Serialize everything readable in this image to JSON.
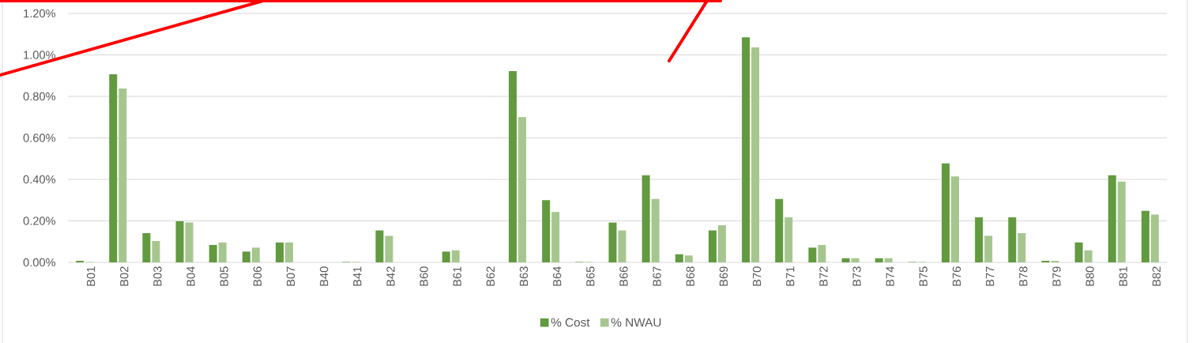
{
  "chart_data": {
    "type": "bar",
    "categories": [
      "B01",
      "B02",
      "B03",
      "B04",
      "B05",
      "B06",
      "B07",
      "B40",
      "B41",
      "B42",
      "B60",
      "B61",
      "B62",
      "B63",
      "B64",
      "B65",
      "B66",
      "B67",
      "B68",
      "B69",
      "B70",
      "B71",
      "B72",
      "B73",
      "B74",
      "B75",
      "B76",
      "B77",
      "B78",
      "B79",
      "B80",
      "B81",
      "B82"
    ],
    "series": [
      {
        "name": "% Cost",
        "color": "#629a3f",
        "values": [
          0.008,
          0.907,
          0.141,
          0.198,
          0.084,
          0.052,
          0.096,
          0,
          0.002,
          0.154,
          0,
          0.052,
          0,
          0.922,
          0.3,
          0.002,
          0.192,
          0.42,
          0.039,
          0.154,
          1.085,
          0.306,
          0.071,
          0.02,
          0.02,
          0.002,
          0.477,
          0.217,
          0.217,
          0.008,
          0.096,
          0.42,
          0.249
        ]
      },
      {
        "name": "% NWAU",
        "color": "#a6c68f",
        "values": [
          0.002,
          0.838,
          0.103,
          0.192,
          0.096,
          0.071,
          0.096,
          0,
          0.002,
          0.128,
          0,
          0.058,
          0,
          0.7,
          0.243,
          0.002,
          0.154,
          0.306,
          0.033,
          0.179,
          1.036,
          0.217,
          0.084,
          0.02,
          0.02,
          0.002,
          0.414,
          0.128,
          0.141,
          0.008,
          0.058,
          0.389,
          0.23
        ]
      }
    ],
    "ylim": [
      0,
      1.2
    ],
    "yticks": [
      {
        "value": 0,
        "label": "0.00%"
      },
      {
        "value": 0.2,
        "label": "0.20%"
      },
      {
        "value": 0.4,
        "label": "0.40%"
      },
      {
        "value": 0.6,
        "label": "0.60%"
      },
      {
        "value": 0.8,
        "label": "0.80%"
      },
      {
        "value": 1.0,
        "label": "1.00%"
      },
      {
        "value": 1.2,
        "label": "1.20%"
      }
    ],
    "grid": "y",
    "legend": "bottom"
  }
}
